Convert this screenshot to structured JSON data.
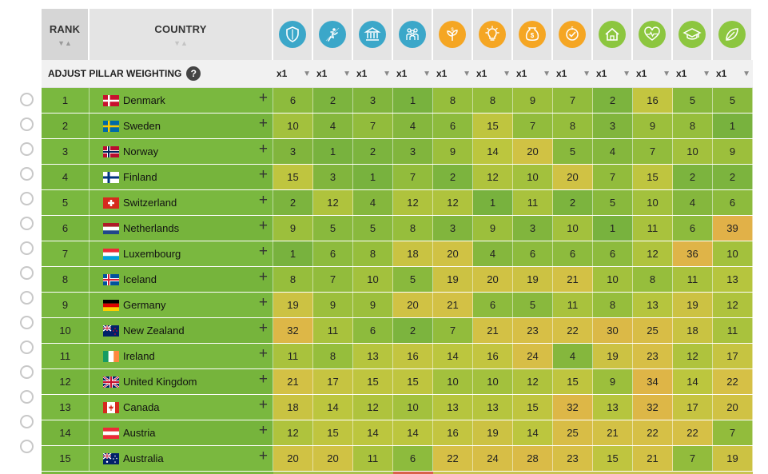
{
  "header": {
    "rank_label": "RANK",
    "country_label": "COUNTRY",
    "pillars": [
      {
        "icon": "shield-icon",
        "color": "#3ba7c9"
      },
      {
        "icon": "runner-icon",
        "color": "#3ba7c9"
      },
      {
        "icon": "bank-icon",
        "color": "#3ba7c9"
      },
      {
        "icon": "people-icon",
        "color": "#3ba7c9"
      },
      {
        "icon": "money-plant-icon",
        "color": "#f5a623"
      },
      {
        "icon": "lightbulb-icon",
        "color": "#f5a623"
      },
      {
        "icon": "money-bag-icon",
        "color": "#f5a623"
      },
      {
        "icon": "coin-check-icon",
        "color": "#f5a623"
      },
      {
        "icon": "house-icon",
        "color": "#8cc63f"
      },
      {
        "icon": "heart-pulse-icon",
        "color": "#8cc63f"
      },
      {
        "icon": "graduation-cap-icon",
        "color": "#8cc63f"
      },
      {
        "icon": "leaf-icon",
        "color": "#8cc63f"
      }
    ]
  },
  "weighting": {
    "label": "ADJUST PILLAR WEIGHTING",
    "help": "?",
    "values": [
      "x1",
      "x1",
      "x1",
      "x1",
      "x1",
      "x1",
      "x1",
      "x1",
      "x1",
      "x1",
      "x1",
      "x1"
    ]
  },
  "rows": [
    {
      "rank": "1",
      "country": "Denmark",
      "flag": "dk",
      "values": [
        "6",
        "2",
        "3",
        "1",
        "8",
        "8",
        "9",
        "7",
        "2",
        "16",
        "5",
        "5"
      ]
    },
    {
      "rank": "2",
      "country": "Sweden",
      "flag": "se",
      "values": [
        "10",
        "4",
        "7",
        "4",
        "6",
        "15",
        "7",
        "8",
        "3",
        "9",
        "8",
        "1"
      ]
    },
    {
      "rank": "3",
      "country": "Norway",
      "flag": "no",
      "values": [
        "3",
        "1",
        "2",
        "3",
        "9",
        "14",
        "20",
        "5",
        "4",
        "7",
        "10",
        "9"
      ]
    },
    {
      "rank": "4",
      "country": "Finland",
      "flag": "fi",
      "values": [
        "15",
        "3",
        "1",
        "7",
        "2",
        "12",
        "10",
        "20",
        "7",
        "15",
        "2",
        "2"
      ]
    },
    {
      "rank": "5",
      "country": "Switzerland",
      "flag": "ch",
      "values": [
        "2",
        "12",
        "4",
        "12",
        "12",
        "1",
        "11",
        "2",
        "5",
        "10",
        "4",
        "6"
      ]
    },
    {
      "rank": "6",
      "country": "Netherlands",
      "flag": "nl",
      "values": [
        "9",
        "5",
        "5",
        "8",
        "3",
        "9",
        "3",
        "10",
        "1",
        "11",
        "6",
        "39"
      ]
    },
    {
      "rank": "7",
      "country": "Luxembourg",
      "flag": "lu",
      "values": [
        "1",
        "6",
        "8",
        "18",
        "20",
        "4",
        "6",
        "6",
        "6",
        "12",
        "36",
        "10"
      ]
    },
    {
      "rank": "8",
      "country": "Iceland",
      "flag": "is",
      "values": [
        "8",
        "7",
        "10",
        "5",
        "19",
        "20",
        "19",
        "21",
        "10",
        "8",
        "11",
        "13"
      ]
    },
    {
      "rank": "9",
      "country": "Germany",
      "flag": "de",
      "values": [
        "19",
        "9",
        "9",
        "20",
        "21",
        "6",
        "5",
        "11",
        "8",
        "13",
        "19",
        "12"
      ]
    },
    {
      "rank": "10",
      "country": "New Zealand",
      "flag": "nz",
      "values": [
        "32",
        "11",
        "6",
        "2",
        "7",
        "21",
        "23",
        "22",
        "30",
        "25",
        "18",
        "11"
      ]
    },
    {
      "rank": "11",
      "country": "Ireland",
      "flag": "ie",
      "values": [
        "11",
        "8",
        "13",
        "16",
        "14",
        "16",
        "24",
        "4",
        "19",
        "23",
        "12",
        "17"
      ]
    },
    {
      "rank": "12",
      "country": "United Kingdom",
      "flag": "gb",
      "values": [
        "21",
        "17",
        "15",
        "15",
        "10",
        "10",
        "12",
        "15",
        "9",
        "34",
        "14",
        "22"
      ]
    },
    {
      "rank": "13",
      "country": "Canada",
      "flag": "ca",
      "values": [
        "18",
        "14",
        "12",
        "10",
        "13",
        "13",
        "15",
        "32",
        "13",
        "32",
        "17",
        "20"
      ]
    },
    {
      "rank": "14",
      "country": "Austria",
      "flag": "at",
      "values": [
        "12",
        "15",
        "14",
        "14",
        "16",
        "19",
        "14",
        "25",
        "21",
        "22",
        "22",
        "7"
      ]
    },
    {
      "rank": "15",
      "country": "Australia",
      "flag": "au",
      "values": [
        "20",
        "20",
        "11",
        "6",
        "22",
        "24",
        "28",
        "23",
        "15",
        "21",
        "7",
        "19"
      ]
    }
  ]
}
